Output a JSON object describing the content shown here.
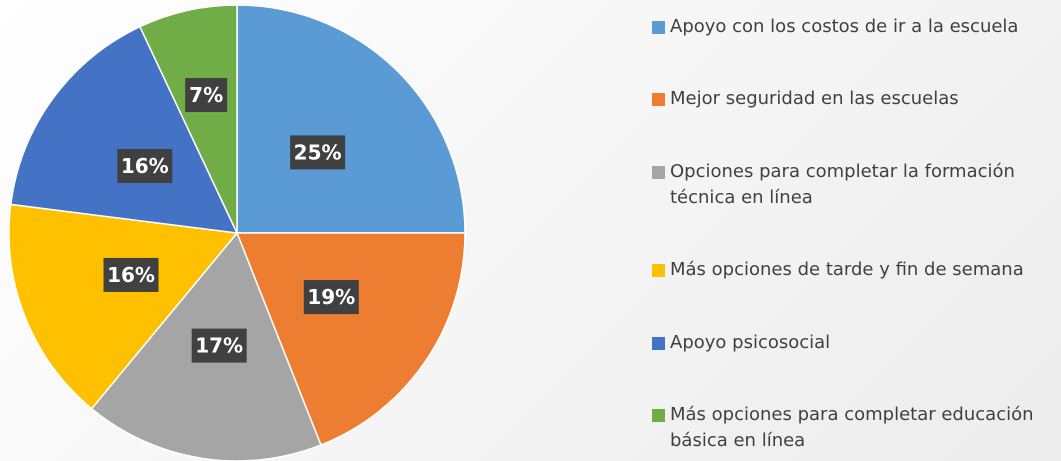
{
  "chart_data": {
    "type": "pie",
    "categories": [
      "Apoyo con los costos de ir a la escuela",
      "Mejor seguridad en las escuelas",
      "Opciones para completar la formación técnica en línea",
      "Más opciones de tarde y fin de semana",
      "Apoyo psicosocial",
      "Más opciones para completar educación básica en línea"
    ],
    "values": [
      25,
      19,
      17,
      16,
      16,
      7
    ],
    "value_labels": [
      "25%",
      "19%",
      "17%",
      "16%",
      "16%",
      "7%"
    ],
    "colors": [
      "#5b9bd5",
      "#ed7d31",
      "#a5a5a5",
      "#ffc000",
      "#4472c4",
      "#70ad47"
    ],
    "legend": "right"
  }
}
